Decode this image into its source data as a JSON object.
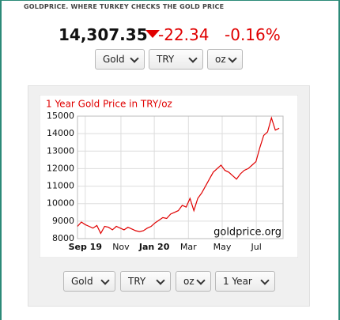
{
  "header": {
    "site": "GOLDPRICE. WHERE TURKEY CHECKS THE GOLD PRICE"
  },
  "quote": {
    "price": "14,307.35",
    "change": "-22.34",
    "change_percent": "-0.16%"
  },
  "top_selects": [
    "Gold",
    "TRY",
    "oz"
  ],
  "bottom_selects": [
    "Gold",
    "TRY",
    "oz",
    "1 Year"
  ],
  "chart_data": {
    "type": "line",
    "title": "1 Year Gold Price in TRY/oz",
    "annotation": "goldprice.org",
    "x": [
      0,
      1,
      2,
      3,
      4,
      5,
      6,
      7,
      8,
      9,
      10,
      11,
      12,
      13,
      14,
      15,
      16,
      17,
      18,
      19,
      20,
      21,
      22,
      23,
      24,
      25,
      26,
      27,
      28,
      29,
      30,
      31,
      32,
      33,
      34,
      35,
      36,
      37,
      38,
      39,
      40,
      41,
      42,
      43,
      44,
      45,
      46,
      47,
      48,
      49,
      50,
      51,
      52
    ],
    "series": [
      {
        "color": "#e00000",
        "values": [
          8700,
          8950,
          8800,
          8700,
          8600,
          8750,
          8300,
          8700,
          8650,
          8500,
          8700,
          8600,
          8500,
          8650,
          8550,
          8450,
          8400,
          8450,
          8600,
          8700,
          8900,
          9050,
          9200,
          9150,
          9400,
          9500,
          9600,
          9900,
          9800,
          10300,
          9600,
          10300,
          10600,
          11000,
          11400,
          11800,
          12000,
          12200,
          11900,
          11800,
          11600,
          11400,
          11700,
          11900,
          12000,
          12200,
          12400,
          13200,
          13900,
          14100,
          14900,
          14200,
          14307.35
        ]
      }
    ],
    "xlim": [
      0,
      53
    ],
    "xticks": [
      {
        "value": 2,
        "label": "Sep 19"
      },
      {
        "value": 11.2,
        "label": "Nov"
      },
      {
        "value": 19.8,
        "label": "Jan 20"
      },
      {
        "value": 28.6,
        "label": "Mar"
      },
      {
        "value": 37.3,
        "label": "May"
      },
      {
        "value": 46.1,
        "label": "Jul"
      }
    ],
    "ylim": [
      8000,
      15000
    ],
    "yticks": [
      8000,
      9000,
      10000,
      11000,
      12000,
      13000,
      14000,
      15000
    ],
    "grid": true
  }
}
